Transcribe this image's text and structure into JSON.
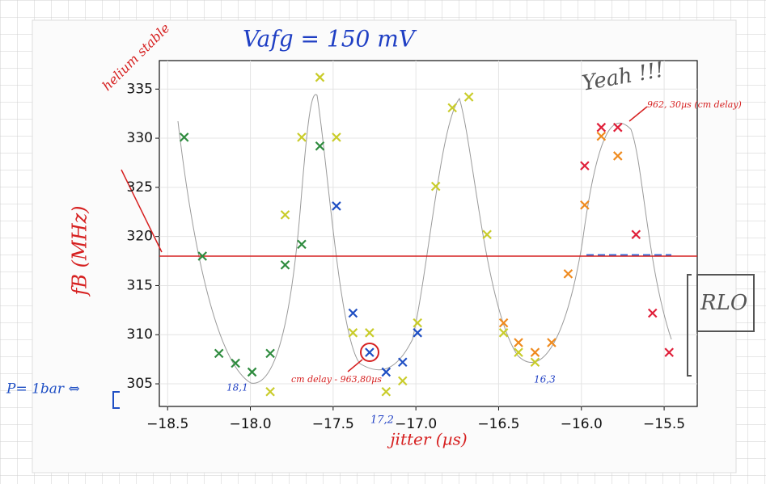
{
  "chart_data": {
    "type": "scatter",
    "title": "Vafg = 150 mV",
    "x_label": "jitter (µs)",
    "y_label": "fB (MHz)",
    "annotations": [
      "Yeah !!!",
      "helium stable",
      "962, 30µs (cm delay)",
      "cm delay - 963,80µs",
      "P= 1bar ⇔",
      "18,1",
      "17,2",
      "16,3",
      "RLO"
    ],
    "reference_line": 318,
    "reference_color": "#d62020",
    "xlim": [
      -18.55,
      -15.3
    ],
    "ylim": [
      302.7,
      337.9
    ],
    "xticks": [
      {
        "value": -18.5,
        "label": "−18.5"
      },
      {
        "value": -18.0,
        "label": "−18.0"
      },
      {
        "value": -17.5,
        "label": "−17.5"
      },
      {
        "value": -17.0,
        "label": "−17.0"
      },
      {
        "value": -16.5,
        "label": "−16.5"
      },
      {
        "value": -16.0,
        "label": "−16.0"
      },
      {
        "value": -15.5,
        "label": "−15.5"
      }
    ],
    "yticks": [
      305,
      310,
      315,
      320,
      325,
      330,
      335
    ],
    "grid": true,
    "series": [
      {
        "color": "#2e8b3e",
        "x": [
          -18.4,
          -18.29,
          -18.19,
          -18.09,
          -17.99,
          -17.88,
          -17.79,
          -17.69,
          -17.58
        ],
        "values": [
          330.1,
          318,
          308.1,
          307.1,
          306.2,
          308.1,
          317.1,
          319.2,
          329.2
        ]
      },
      {
        "color": "#c9cc2a",
        "x": [
          -17.88,
          -17.79,
          -17.69,
          -17.58,
          -17.48,
          -17.38,
          -17.28,
          -17.18,
          -17.08,
          -16.99,
          -16.88,
          -16.78,
          -16.68,
          -16.57,
          -16.47,
          -16.38,
          -16.28
        ],
        "values": [
          304.2,
          322.2,
          330.1,
          336.2,
          330.1,
          310.2,
          310.2,
          304.2,
          305.3,
          311.2,
          325.1,
          333.1,
          334.2,
          320.2,
          310.2,
          308.2,
          307.2
        ]
      },
      {
        "color": "#1f4fc4",
        "x": [
          -17.48,
          -17.38,
          -17.28,
          -17.18,
          -17.08,
          -16.99
        ],
        "values": [
          323.1,
          312.2,
          308.2,
          306.2,
          307.2,
          310.2
        ]
      },
      {
        "color": "#ef8a1e",
        "x": [
          -16.47,
          -16.38,
          -16.28,
          -16.18,
          -16.08,
          -15.98,
          -15.88,
          -15.78
        ],
        "values": [
          311.2,
          309.2,
          308.2,
          309.2,
          316.2,
          323.2,
          330.2,
          328.2
        ]
      },
      {
        "color": "#e0203a",
        "x": [
          -15.98,
          -15.88,
          -15.78,
          -15.67,
          -15.57,
          -15.47
        ],
        "values": [
          327.2,
          331.1,
          331.1,
          320.2,
          312.2,
          308.2
        ]
      }
    ]
  }
}
